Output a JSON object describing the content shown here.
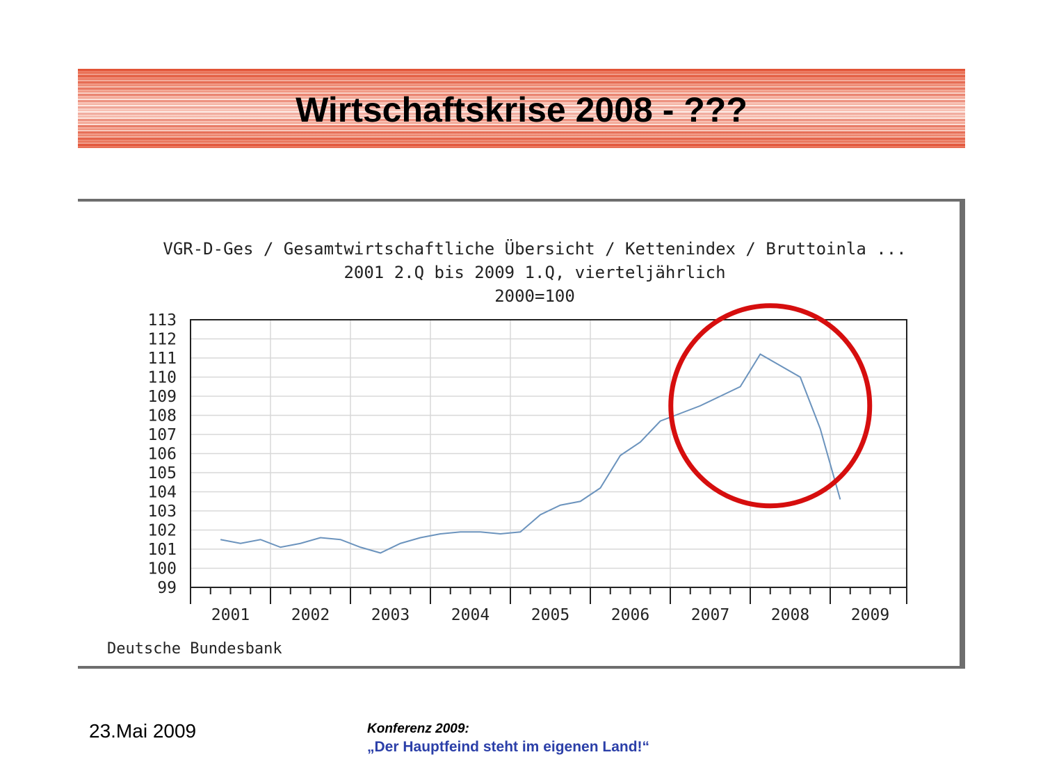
{
  "slide": {
    "title": "Wirtschaftskrise 2008 - ???",
    "date": "23.Mai 2009",
    "conference": "Konferenz 2009:",
    "motto": "„Der Hauptfeind steht im eigenen Land!“"
  },
  "colors": {
    "line": "#6b93bd",
    "highlight_circle": "#d60e0e",
    "grid": "#d8d8d8",
    "banner": "#e2553a",
    "motto": "#2b3fa8"
  },
  "chart_data": {
    "type": "line",
    "title": "VGR-D-Ges / Gesamtwirtschaftliche Übersicht / Kettenindex / Bruttoinla ...",
    "subtitle": "2001 2.Q bis 2009 1.Q, vierteljährlich",
    "unit_note": "2000=100",
    "source": "Deutsche Bundesbank",
    "xlabel": "",
    "ylabel": "",
    "ylim": [
      99,
      113
    ],
    "yticks": [
      99,
      100,
      101,
      102,
      103,
      104,
      105,
      106,
      107,
      108,
      109,
      110,
      111,
      112,
      113
    ],
    "x_year_labels": [
      "2001",
      "2002",
      "2003",
      "2004",
      "2005",
      "2006",
      "2007",
      "2008",
      "2009"
    ],
    "grid": true,
    "highlight": "circle around 2007 Q4 – 2009 Q1",
    "series": [
      {
        "x": [
          "2001 2.Q",
          "2001 3.Q",
          "2001 4.Q",
          "2002 1.Q",
          "2002 2.Q",
          "2002 3.Q",
          "2002 4.Q",
          "2003 1.Q",
          "2003 2.Q",
          "2003 3.Q",
          "2003 4.Q",
          "2004 1.Q",
          "2004 2.Q",
          "2004 3.Q",
          "2004 4.Q",
          "2005 1.Q",
          "2005 2.Q",
          "2005 3.Q",
          "2005 4.Q",
          "2006 1.Q",
          "2006 2.Q",
          "2006 3.Q",
          "2006 4.Q",
          "2007 1.Q",
          "2007 2.Q",
          "2007 3.Q",
          "2007 4.Q",
          "2008 1.Q",
          "2008 2.Q",
          "2008 3.Q",
          "2008 4.Q",
          "2009 1.Q"
        ],
        "values": [
          101.5,
          101.3,
          101.5,
          101.1,
          101.3,
          101.6,
          101.5,
          101.1,
          100.8,
          101.3,
          101.6,
          101.8,
          101.9,
          101.9,
          101.8,
          101.9,
          102.8,
          103.3,
          103.5,
          104.2,
          105.9,
          106.6,
          107.7,
          108.1,
          108.5,
          109.0,
          109.5,
          111.2,
          110.6,
          110.0,
          107.3,
          103.6
        ]
      }
    ]
  }
}
